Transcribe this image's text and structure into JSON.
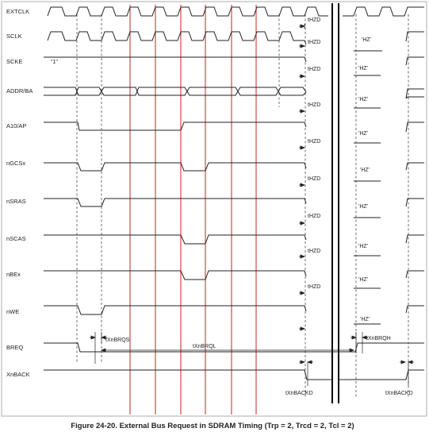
{
  "signals": [
    {
      "name": "EXTCLK"
    },
    {
      "name": "SCLK"
    },
    {
      "name": "SCKE"
    },
    {
      "name": "ADDR/BA"
    },
    {
      "name": "A10/AP"
    },
    {
      "name": "nGCSx"
    },
    {
      "name": "nSRAS"
    },
    {
      "name": "nSCAS"
    },
    {
      "name": "nBEx"
    },
    {
      "name": "nWE"
    },
    {
      "name": "BREQ"
    },
    {
      "name": "XnBACK"
    }
  ],
  "scke_value": "\"1\"",
  "thzd_label": "tHZD",
  "hz_label": "'HZ'",
  "timing_params": {
    "brqs": "tXnBRQS",
    "brql": "tXnBRQL",
    "brqh": "tXnBRQH",
    "backd_1": "tXnBACKD",
    "backd_2": "tXnBACKD"
  },
  "caption": "Figure 24-20. External Bus Request in SDRAM Timing (Trp = 2, Trcd = 2, Tcl = 2)",
  "colors": {
    "signal": "#222222",
    "marker": "#cc2222",
    "dashed": "#333333"
  }
}
